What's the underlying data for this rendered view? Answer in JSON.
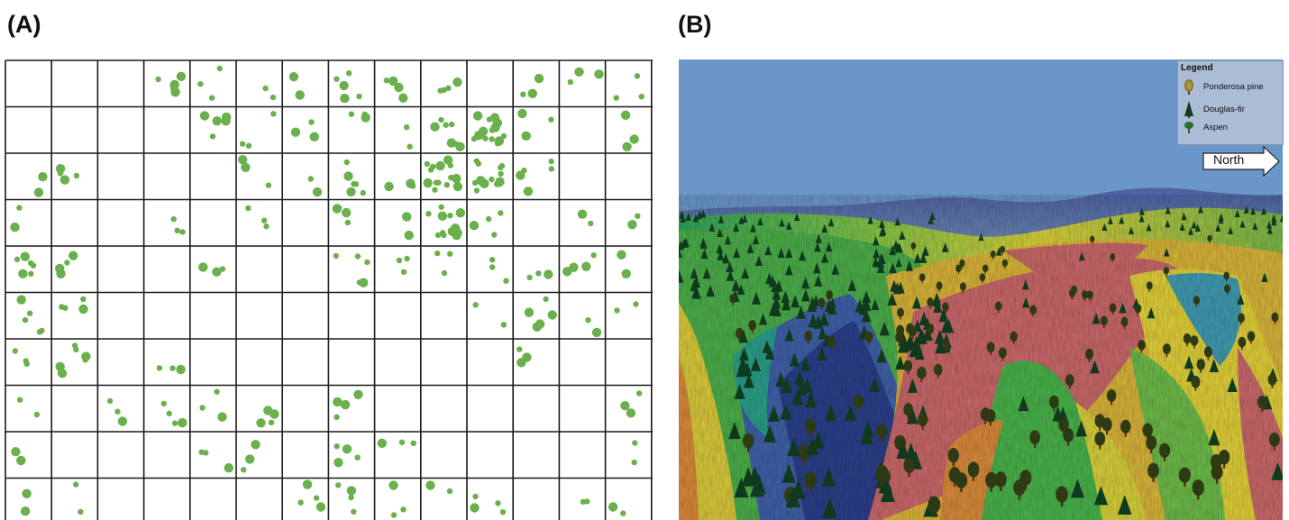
{
  "panels": {
    "a": {
      "label": "(A)"
    },
    "b": {
      "label": "(B)"
    }
  },
  "legend": {
    "title": "Legend",
    "items": [
      {
        "label": "Ponderosa pine",
        "icon": "ponderosa-pine-icon",
        "color": "#8a7a2a"
      },
      {
        "label": "Douglas-fir",
        "icon": "douglas-fir-icon",
        "color": "#123a1c"
      },
      {
        "label": "Aspen",
        "icon": "aspen-icon",
        "color": "#2f6e2a"
      }
    ]
  },
  "compass": {
    "label": "North"
  },
  "colors": {
    "tree_dot": "#6ab04c",
    "grid_line": "#1a1a1a",
    "sky": "#6a96c8"
  },
  "grid": {
    "columns": 14,
    "rows": 10,
    "tree_counts": [
      [
        0,
        0,
        0,
        5,
        3,
        2,
        2,
        5,
        4,
        4,
        0,
        3,
        3,
        3
      ],
      [
        0,
        0,
        0,
        0,
        5,
        3,
        3,
        3,
        2,
        7,
        14,
        3,
        0,
        3
      ],
      [
        2,
        4,
        0,
        0,
        0,
        3,
        2,
        6,
        3,
        14,
        14,
        5,
        0,
        0
      ],
      [
        2,
        0,
        0,
        3,
        0,
        3,
        0,
        4,
        2,
        14,
        4,
        0,
        2,
        2
      ],
      [
        6,
        4,
        0,
        0,
        3,
        0,
        0,
        5,
        3,
        3,
        3,
        3,
        4,
        2
      ],
      [
        5,
        4,
        0,
        0,
        0,
        0,
        0,
        0,
        0,
        0,
        2,
        5,
        2,
        2
      ],
      [
        3,
        6,
        0,
        3,
        0,
        0,
        0,
        0,
        0,
        0,
        0,
        3,
        0,
        0
      ],
      [
        2,
        0,
        3,
        4,
        3,
        4,
        0,
        4,
        0,
        0,
        0,
        0,
        0,
        3
      ],
      [
        2,
        0,
        0,
        0,
        3,
        3,
        0,
        4,
        3,
        0,
        0,
        0,
        0,
        2
      ],
      [
        2,
        2,
        0,
        0,
        0,
        0,
        4,
        4,
        3,
        2,
        4,
        0,
        2,
        2
      ]
    ]
  }
}
